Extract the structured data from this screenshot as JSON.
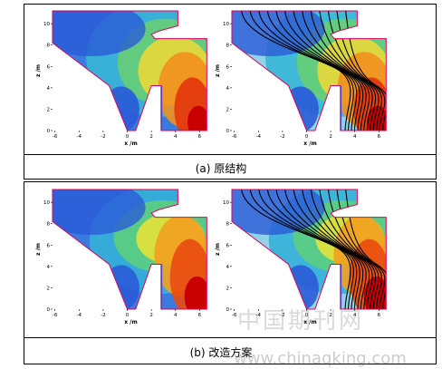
{
  "axis": {
    "x_label": "x /m",
    "y_label": "z /m",
    "x_ticks": [
      "-6",
      "-4",
      "-2",
      "0",
      "2",
      "4",
      "6"
    ],
    "y_ticks": [
      "0",
      "2",
      "4",
      "6",
      "8",
      "10"
    ]
  },
  "panels": {
    "a": {
      "caption": "(a) 原结构"
    },
    "b": {
      "caption": "(b) 改造方案"
    }
  },
  "watermark": {
    "text_cn": "中国期刊网",
    "url": "www.chinaqking.com"
  },
  "colors": {
    "boundary": "#e0005a",
    "streamline": "#000000",
    "low": "#2a5bd7",
    "high": "#d20000"
  }
}
